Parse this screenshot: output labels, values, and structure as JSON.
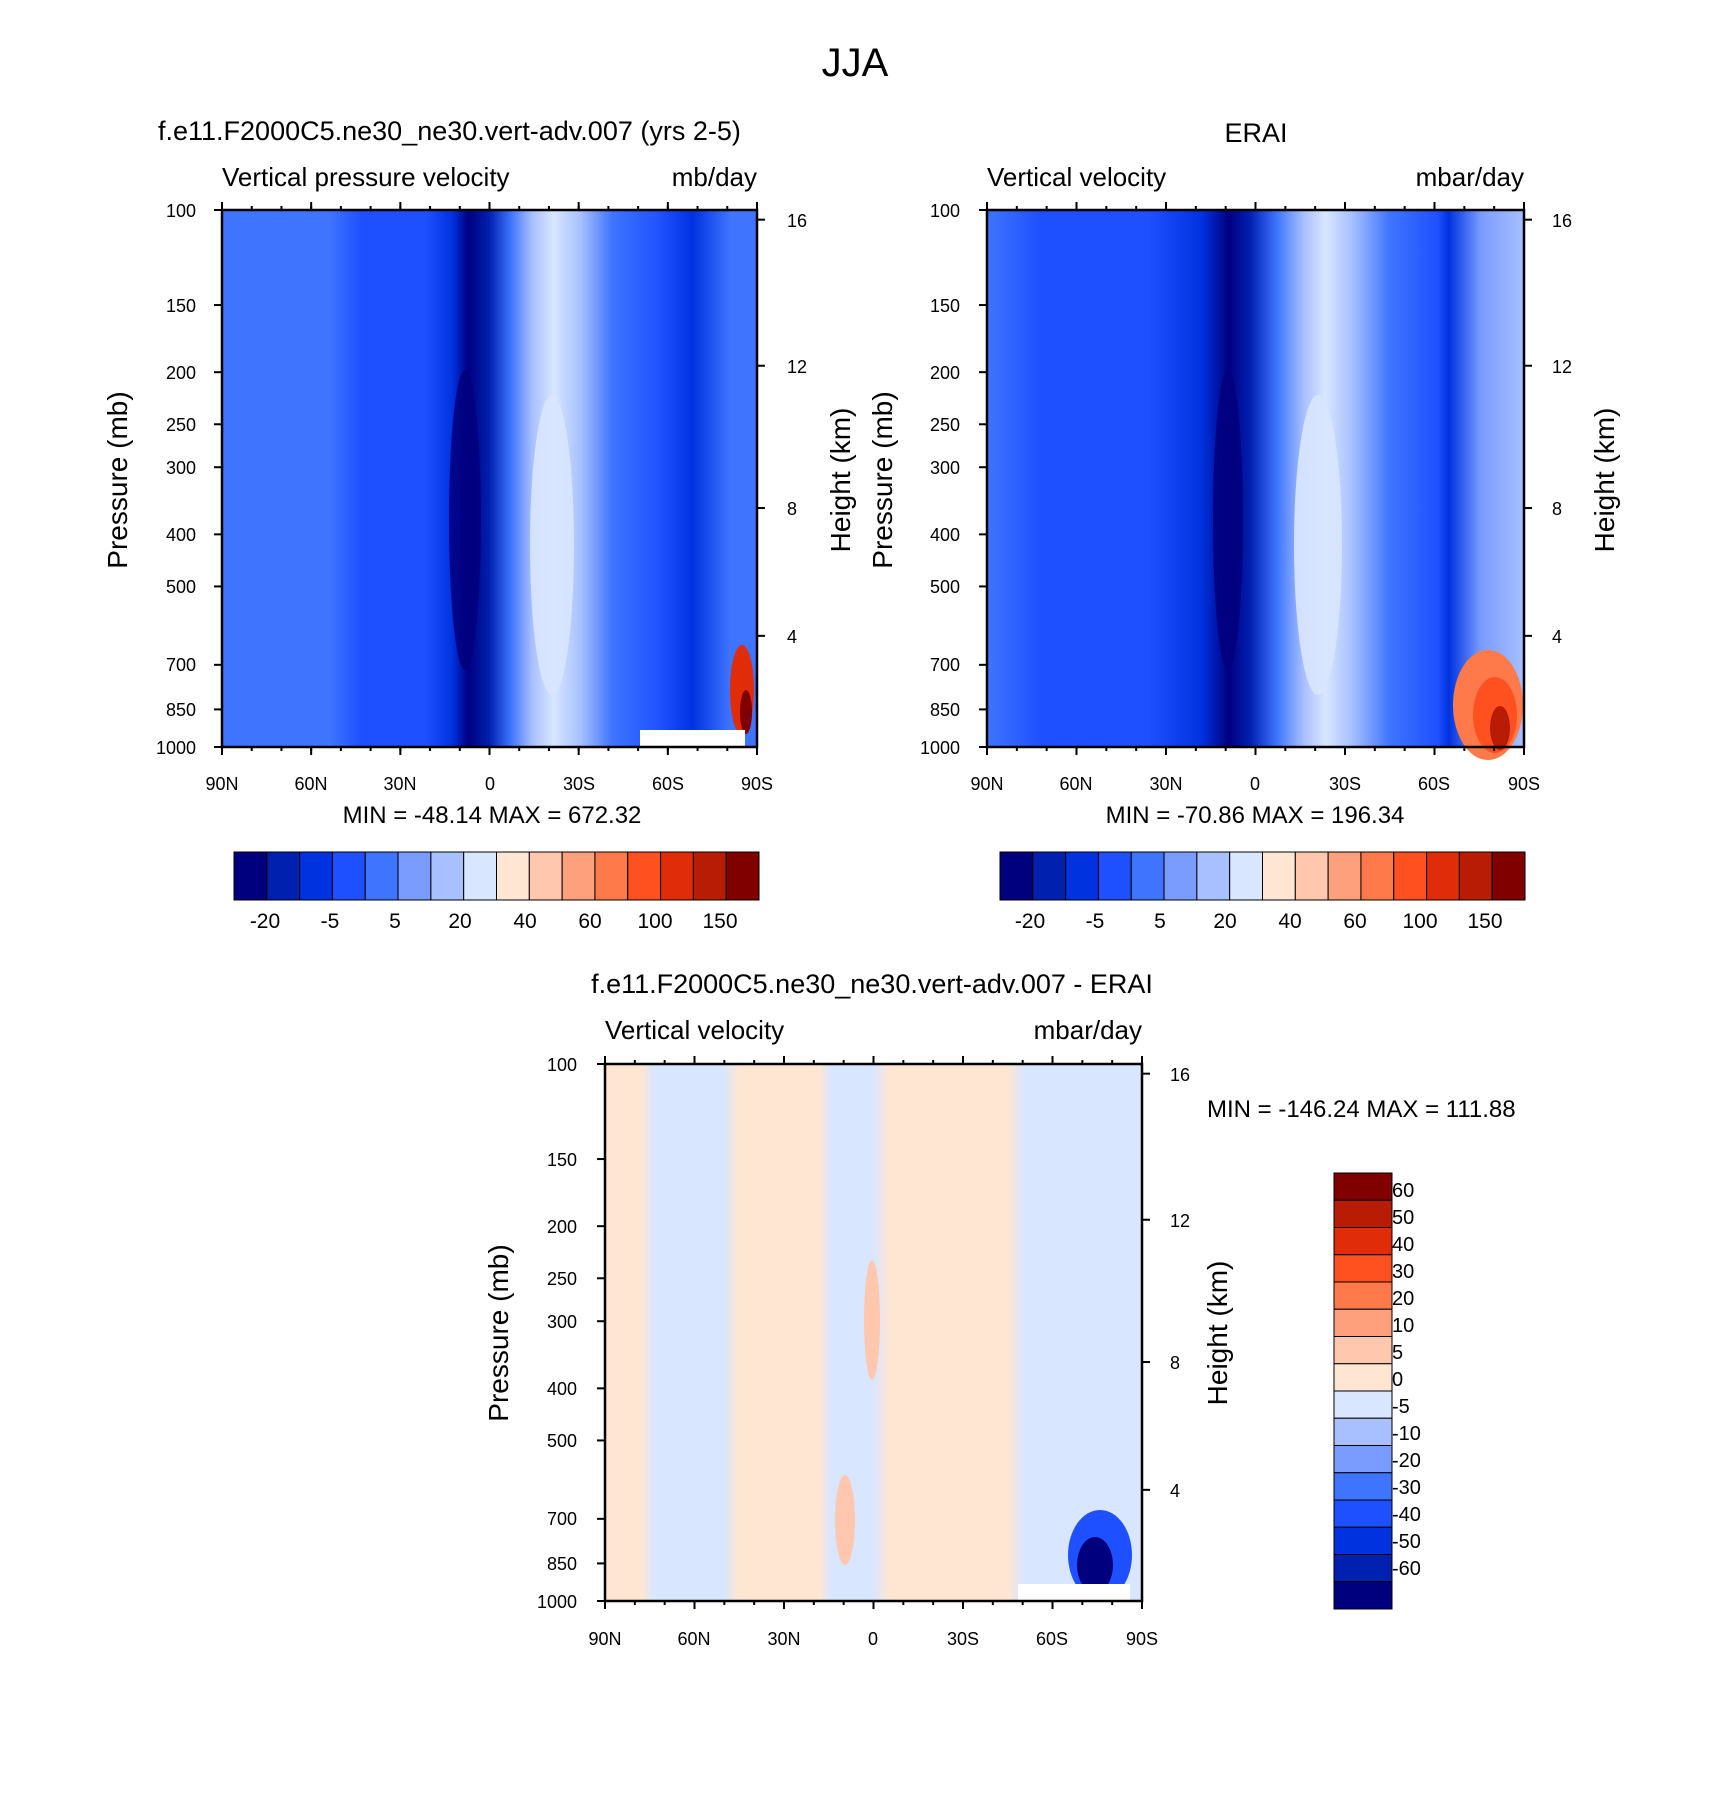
{
  "title": "JJA",
  "colors": {
    "abs_levels": [
      "#00007f",
      "#0020b0",
      "#0032e0",
      "#1e50ff",
      "#3f74ff",
      "#7a9cff",
      "#a8c0ff",
      "#d8e6ff",
      "#ffe6d2",
      "#ffc8ae",
      "#ffa07c",
      "#ff7a4a",
      "#ff5020",
      "#e02c08",
      "#b81c04",
      "#800000"
    ],
    "diff_levels": [
      "#00007f",
      "#0020b0",
      "#0032e0",
      "#1e50ff",
      "#3f74ff",
      "#7a9cff",
      "#a8c0ff",
      "#d8e6ff",
      "#ffe6d2",
      "#ffc8ae",
      "#ffa07c",
      "#ff7a4a",
      "#ff5020",
      "#e02c08",
      "#b81c04",
      "#800000"
    ]
  },
  "chart_data": [
    {
      "type": "heatmap",
      "title": "f.e11.F2000C5.ne30_ne30.vert-adv.007 (yrs 2-5)",
      "left_label": "Vertical pressure velocity",
      "right_label": "mb/day",
      "ylabel": "Pressure (mb)",
      "ylabel_right": "Height (km)",
      "xticks": [
        "90N",
        "60N",
        "30N",
        "0",
        "30S",
        "60S",
        "90S"
      ],
      "yticks": [
        "100",
        "150",
        "200",
        "250",
        "300",
        "400",
        "500",
        "700",
        "850",
        "1000"
      ],
      "height_ticks": [
        "16",
        "12",
        "8",
        "4"
      ],
      "stats": "MIN = -48.14  MAX = 672.32",
      "colorbar_labels": [
        "-20",
        "-5",
        "5",
        "20",
        "40",
        "60",
        "100",
        "150"
      ]
    },
    {
      "type": "heatmap",
      "title": "ERAI",
      "left_label": "Vertical velocity",
      "right_label": "mbar/day",
      "ylabel": "Pressure (mb)",
      "ylabel_right": "Height (km)",
      "xticks": [
        "90N",
        "60N",
        "30N",
        "0",
        "30S",
        "60S",
        "90S"
      ],
      "yticks": [
        "100",
        "150",
        "200",
        "250",
        "300",
        "400",
        "500",
        "700",
        "850",
        "1000"
      ],
      "height_ticks": [
        "16",
        "12",
        "8",
        "4"
      ],
      "stats": "MIN = -70.86  MAX = 196.34",
      "colorbar_labels": [
        "-20",
        "-5",
        "5",
        "20",
        "40",
        "60",
        "100",
        "150"
      ]
    },
    {
      "type": "heatmap",
      "title": "f.e11.F2000C5.ne30_ne30.vert-adv.007 - ERAI",
      "left_label": "Vertical velocity",
      "right_label": "mbar/day",
      "ylabel": "Pressure (mb)",
      "ylabel_right": "Height (km)",
      "xticks": [
        "90N",
        "60N",
        "30N",
        "0",
        "30S",
        "60S",
        "90S"
      ],
      "yticks": [
        "100",
        "150",
        "200",
        "250",
        "300",
        "400",
        "500",
        "700",
        "850",
        "1000"
      ],
      "height_ticks": [
        "16",
        "12",
        "8",
        "4"
      ],
      "stats": "MIN = -146.24  MAX = 111.88",
      "colorbar_labels": [
        "60",
        "50",
        "40",
        "30",
        "20",
        "10",
        "5",
        "0",
        "-5",
        "-10",
        "-20",
        "-30",
        "-40",
        "-50",
        "-60"
      ]
    }
  ]
}
